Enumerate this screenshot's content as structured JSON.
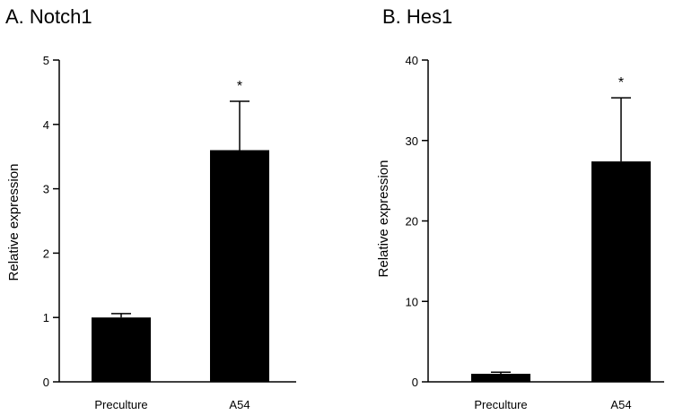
{
  "chart_data": [
    {
      "type": "bar",
      "title": "A.  Notch1",
      "ylabel": "Relative expression",
      "xlabel": "",
      "categories": [
        "Preculture",
        "A54"
      ],
      "values": [
        1.0,
        3.6
      ],
      "errors": [
        0.06,
        0.76
      ],
      "significance": [
        "",
        "*"
      ],
      "ylim": [
        0,
        5
      ],
      "yticks": [
        0,
        1,
        2,
        3,
        4,
        5
      ],
      "grid": false,
      "bar_color": "#000000"
    },
    {
      "type": "bar",
      "title": "B.  Hes1",
      "ylabel": "Relative expression",
      "xlabel": "",
      "categories": [
        "Preculture",
        "A54"
      ],
      "values": [
        1.0,
        27.4
      ],
      "errors": [
        0.2,
        7.9
      ],
      "significance": [
        "",
        "*"
      ],
      "ylim": [
        0,
        40
      ],
      "yticks": [
        0,
        10,
        20,
        30,
        40
      ],
      "grid": false,
      "bar_color": "#000000"
    }
  ]
}
